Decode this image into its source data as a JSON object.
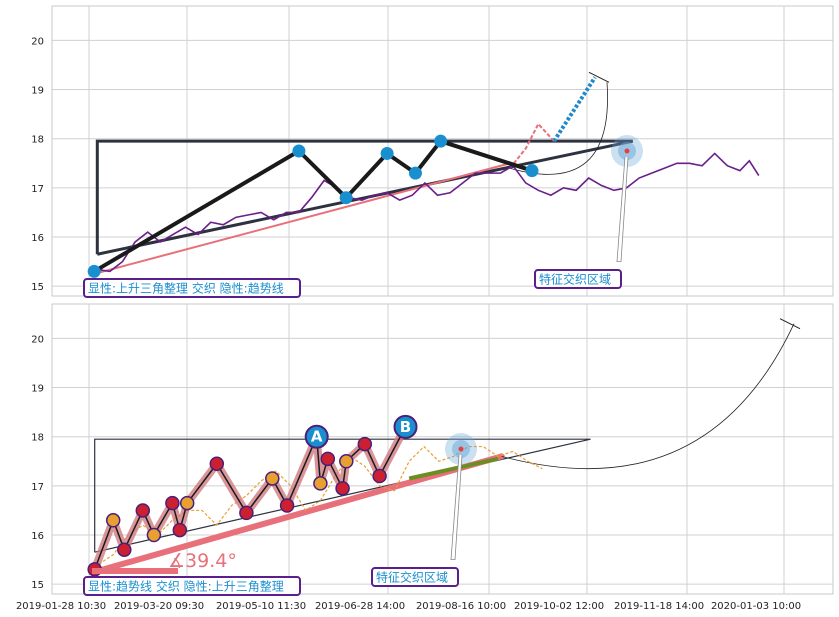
{
  "chart_data": [
    {
      "type": "line",
      "panel": "top",
      "y_ticks": [
        15,
        16,
        17,
        18,
        19,
        20
      ],
      "ylim": [
        14.8,
        20.7
      ],
      "grid": true,
      "series": [
        {
          "color": "#6a1e8a",
          "values": [
            [
              1,
              15.35
            ],
            [
              6,
              15.3
            ],
            [
              10,
              15.5
            ],
            [
              14,
              15.9
            ],
            [
              18,
              16.1
            ],
            [
              22,
              15.9
            ],
            [
              26,
              16.05
            ],
            [
              30,
              16.2
            ],
            [
              34,
              16.05
            ],
            [
              38,
              16.3
            ],
            [
              42,
              16.25
            ],
            [
              46,
              16.4
            ],
            [
              50,
              16.45
            ],
            [
              54,
              16.5
            ],
            [
              58,
              16.35
            ],
            [
              62,
              16.5
            ],
            [
              66,
              16.5
            ],
            [
              70,
              16.8
            ],
            [
              74,
              17.15
            ],
            [
              78,
              17.0
            ],
            [
              82,
              16.8
            ],
            [
              86,
              16.75
            ],
            [
              90,
              16.85
            ],
            [
              94,
              16.9
            ],
            [
              98,
              16.75
            ],
            [
              102,
              16.85
            ],
            [
              106,
              17.1
            ],
            [
              110,
              16.85
            ],
            [
              114,
              16.9
            ],
            [
              118,
              17.1
            ],
            [
              122,
              17.3
            ],
            [
              126,
              17.3
            ],
            [
              130,
              17.3
            ],
            [
              134,
              17.45
            ],
            [
              138,
              17.1
            ],
            [
              142,
              16.95
            ],
            [
              146,
              16.85
            ],
            [
              150,
              17.0
            ],
            [
              154,
              16.95
            ],
            [
              158,
              17.2
            ],
            [
              162,
              17.05
            ],
            [
              166,
              16.95
            ],
            [
              170,
              17.0
            ],
            [
              174,
              17.2
            ],
            [
              178,
              17.3
            ],
            [
              182,
              17.4
            ],
            [
              186,
              17.5
            ],
            [
              190,
              17.5
            ],
            [
              194,
              17.45
            ],
            [
              198,
              17.7
            ],
            [
              202,
              17.45
            ],
            [
              206,
              17.35
            ],
            [
              209,
              17.55
            ],
            [
              212,
              17.25
            ]
          ]
        }
      ],
      "pivots": [
        [
          1,
          15.3
        ],
        [
          66,
          17.75
        ],
        [
          81,
          16.8
        ],
        [
          94,
          17.7
        ],
        [
          103,
          17.3
        ],
        [
          111,
          17.95
        ],
        [
          140,
          17.35
        ]
      ],
      "triangle_top": [
        [
          2,
          17.95
        ],
        [
          172,
          17.95
        ]
      ],
      "triangle_bottom": [
        [
          2,
          15.65
        ],
        [
          172,
          17.95
        ]
      ],
      "trend_line": [
        [
          1,
          15.25
        ],
        [
          133,
          17.5
        ]
      ],
      "extension": [
        [
          133,
          17.4
        ],
        [
          138,
          17.8
        ],
        [
          142,
          18.3
        ],
        [
          147,
          17.95
        ],
        [
          160,
          19.25
        ]
      ],
      "annotations": [
        {
          "text": "显性:上升三角整理 交织 隐性:趋势线",
          "x": -1,
          "y": 14.95
        },
        {
          "text": "特征交织区域",
          "x": 107,
          "y": 15.15
        }
      ]
    },
    {
      "type": "line",
      "panel": "bottom",
      "x_ticks": [
        "2019-01-28 10:30",
        "2019-03-20 09:30",
        "2019-05-10 11:30",
        "2019-06-28 14:00",
        "2019-08-16 10:00",
        "2019-10-02 12:00",
        "2019-11-18 14:00",
        "2020-01-03 10:00"
      ],
      "y_ticks": [
        15,
        16,
        17,
        18,
        19,
        20
      ],
      "ylim": [
        14.8,
        20.7
      ],
      "grid": true,
      "series": [
        {
          "color": "#e8a030",
          "values": [
            [
              1,
              15.35
            ],
            [
              6,
              15.6
            ],
            [
              10,
              16.0
            ],
            [
              14,
              16.2
            ],
            [
              18,
              16.0
            ],
            [
              22,
              16.3
            ],
            [
              26,
              16.5
            ],
            [
              30,
              16.5
            ],
            [
              34,
              16.2
            ],
            [
              38,
              16.6
            ],
            [
              42,
              16.8
            ],
            [
              46,
              17.1
            ],
            [
              50,
              17.3
            ],
            [
              54,
              17.0
            ],
            [
              58,
              16.5
            ],
            [
              62,
              16.7
            ],
            [
              66,
              17.2
            ],
            [
              70,
              17.6
            ],
            [
              74,
              17.4
            ],
            [
              78,
              17.0
            ],
            [
              82,
              16.9
            ],
            [
              86,
              17.5
            ],
            [
              90,
              17.8
            ],
            [
              94,
              17.5
            ],
            [
              98,
              17.6
            ],
            [
              102,
              17.8
            ],
            [
              106,
              17.8
            ],
            [
              110,
              17.6
            ],
            [
              114,
              17.7
            ],
            [
              118,
              17.5
            ],
            [
              122,
              17.35
            ]
          ]
        }
      ],
      "pivots": [
        [
          1,
          15.3
        ],
        [
          6,
          16.3
        ],
        [
          9,
          15.7
        ],
        [
          14,
          16.5
        ],
        [
          17,
          16.0
        ],
        [
          22,
          16.65
        ],
        [
          24,
          16.1
        ],
        [
          26,
          16.65
        ],
        [
          34,
          17.45
        ],
        [
          42,
          16.45
        ],
        [
          49,
          17.15
        ],
        [
          53,
          16.6
        ],
        [
          61,
          18.0
        ],
        [
          62,
          17.05
        ],
        [
          64,
          17.55
        ],
        [
          68,
          16.95
        ],
        [
          69,
          17.5
        ],
        [
          74,
          17.85
        ],
        [
          78,
          17.2
        ],
        [
          85,
          18.2
        ]
      ],
      "triangle_top": [
        [
          1,
          17.95
        ],
        [
          135,
          17.95
        ]
      ],
      "triangle_bottom": [
        [
          1,
          15.65
        ],
        [
          135,
          17.95
        ]
      ],
      "trend_line": [
        [
          1,
          15.25
        ],
        [
          111,
          17.6
        ]
      ],
      "extension": [
        [
          111,
          17.6
        ],
        [
          150,
          17.1
        ],
        [
          190,
          20.3
        ]
      ],
      "labels": {
        "A": [
          61,
          18.0
        ],
        "B": [
          85,
          18.2
        ]
      },
      "angle_label": "∡39.4°",
      "annotations": [
        {
          "text": "显性:趋势线 交织 隐性:上升三角整理",
          "x": -1,
          "y": 14.95
        },
        {
          "text": "特征交织区域",
          "x": 76,
          "y": 15.15
        }
      ]
    }
  ]
}
